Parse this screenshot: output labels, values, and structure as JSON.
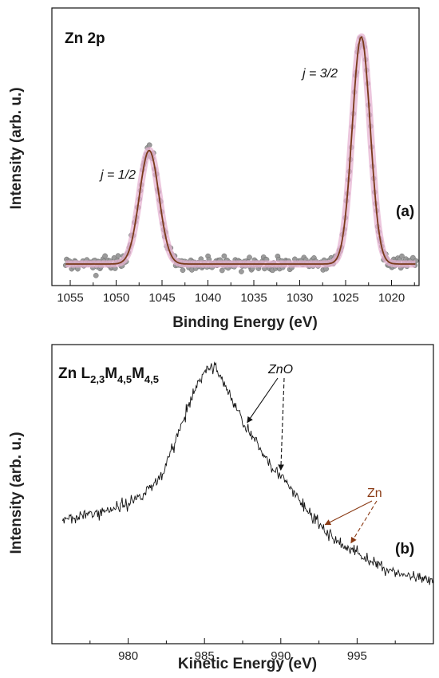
{
  "chart_data": [
    {
      "type": "scatter",
      "panel_label": "(a)",
      "title": "Zn 2p",
      "xlabel": "Binding Energy (eV)",
      "ylabel": "Intensity (arb. u.)",
      "xlim": [
        1057,
        1017
      ],
      "x_reversed": true,
      "xticks": [
        1055,
        1050,
        1045,
        1040,
        1035,
        1030,
        1025,
        1020
      ],
      "yticks_shown": false,
      "annotations": [
        {
          "text": "j = 1/2",
          "near_x": 1047.5
        },
        {
          "text": "j = 3/2",
          "near_x": 1024.5
        }
      ],
      "series": [
        {
          "kind": "measured points with envelope fit",
          "marker_color": "#9a9a9a",
          "envelope_color": "#e6b3d1",
          "fit_color": "#7a3a1a",
          "baseline": 0.06,
          "peaks": [
            {
              "center": 1046.4,
              "height": 0.53,
              "fwhm": 2.5
            },
            {
              "center": 1023.3,
              "height": 1.0,
              "fwhm": 2.3
            }
          ]
        }
      ]
    },
    {
      "type": "line",
      "panel_label": "(b)",
      "title": "Zn L2,3M4,5M4,5",
      "xlabel": "Kinetic Energy (eV)",
      "ylabel": "Intensity (arb. u.)",
      "xlim": [
        975,
        1000
      ],
      "xticks": [
        980,
        985,
        990,
        995
      ],
      "yticks_shown": false,
      "annotations": [
        {
          "text": "ZnO",
          "arrows_to_x": [
            987.8,
            990.0
          ],
          "color": "#111111"
        },
        {
          "text": "Zn",
          "arrows_to_x": [
            992.9,
            994.6
          ],
          "color": "#8a3a14"
        }
      ],
      "series": [
        {
          "kind": "noisy spectrum",
          "color": "#111111",
          "points": [
            [
              975.5,
              0.36
            ],
            [
              977,
              0.37
            ],
            [
              978,
              0.38
            ],
            [
              979,
              0.4
            ],
            [
              980,
              0.42
            ],
            [
              981,
              0.46
            ],
            [
              982,
              0.52
            ],
            [
              982.5,
              0.58
            ],
            [
              983,
              0.66
            ],
            [
              983.5,
              0.74
            ],
            [
              984,
              0.82
            ],
            [
              984.5,
              0.9
            ],
            [
              985,
              0.96
            ],
            [
              985.5,
              0.98
            ],
            [
              986,
              0.95
            ],
            [
              986.5,
              0.88
            ],
            [
              987,
              0.82
            ],
            [
              987.5,
              0.76
            ],
            [
              988,
              0.7
            ],
            [
              989,
              0.61
            ],
            [
              990,
              0.53
            ],
            [
              991,
              0.45
            ],
            [
              992,
              0.37
            ],
            [
              993,
              0.3
            ],
            [
              994,
              0.25
            ],
            [
              995,
              0.22
            ],
            [
              996,
              0.18
            ],
            [
              997,
              0.15
            ],
            [
              998,
              0.13
            ],
            [
              999,
              0.11
            ],
            [
              1000,
              0.1
            ]
          ]
        }
      ]
    }
  ]
}
